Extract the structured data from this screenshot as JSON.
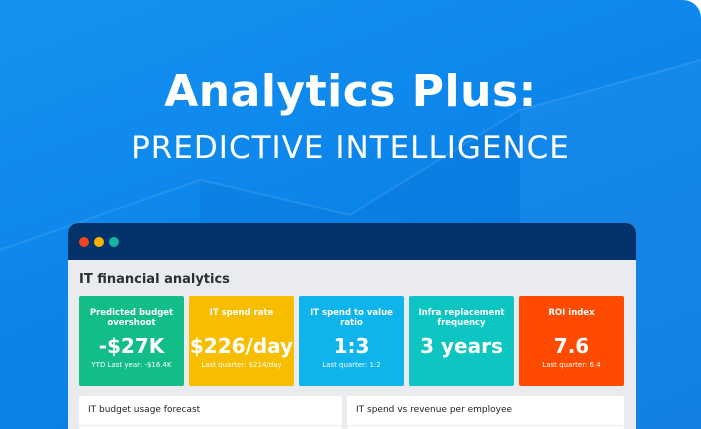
{
  "hero": {
    "title": "Analytics Plus:",
    "subtitle": "PREDICTIVE INTELLIGENCE"
  },
  "window": {
    "title": "IT financial analytics",
    "dots": [
      "#f0451c",
      "#f8b400",
      "#12b7a3"
    ],
    "kpis": [
      {
        "title": "Predicted budget overshoot",
        "value": "-$27K",
        "sub": "YTD Last year: -$16.4K",
        "color": "#12bd88"
      },
      {
        "title": "IT spend rate",
        "value": "$226/day",
        "sub": "Last quarter: $214/day",
        "color": "#f7be00"
      },
      {
        "title": "IT spend to value ratio",
        "value": "1:3",
        "sub": "Last quarter: 1:2",
        "color": "#0eb5ec"
      },
      {
        "title": "Infra replacement frequency",
        "value": "3 years",
        "sub": "",
        "color": "#0dc6c1"
      },
      {
        "title": "ROI index",
        "value": "7.6",
        "sub": "Last quarter: 6.4",
        "color": "#ff4a00"
      }
    ],
    "panels": [
      {
        "title": "IT budget usage forecast"
      },
      {
        "title": "IT spend vs revenue per employee"
      }
    ]
  }
}
